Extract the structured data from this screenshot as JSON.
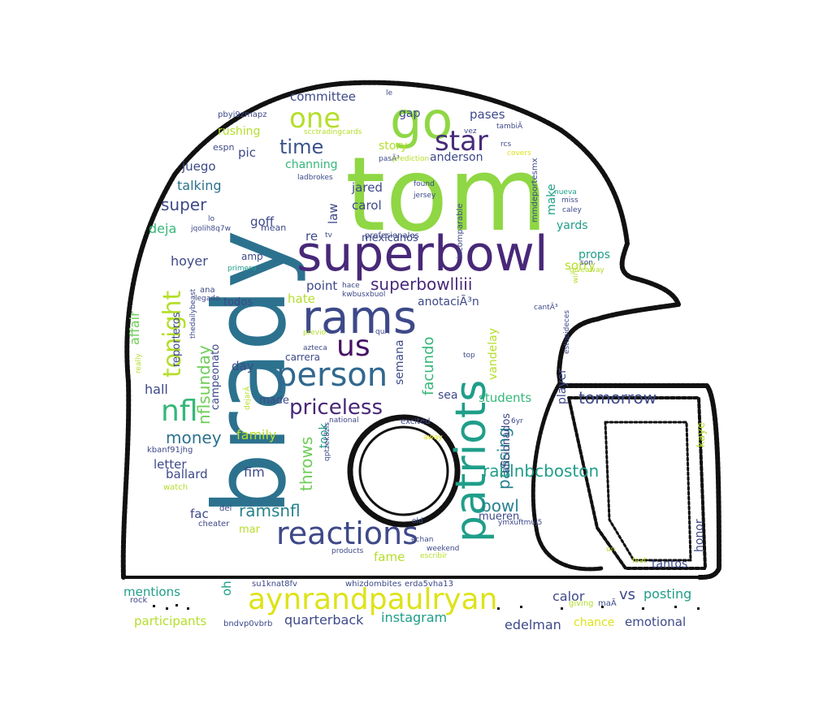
{
  "palette": {
    "dark_purple": "#471164",
    "purple": "#482878",
    "indigo": "#3e4989",
    "blue": "#31688e",
    "teal_blue": "#26828e",
    "teal": "#1f9e89",
    "green": "#35b779",
    "light_green": "#6ece58",
    "lime": "#8fd744",
    "yellow_green": "#b5de2b",
    "yellow": "#dde318"
  },
  "words": [
    {
      "text": "tom",
      "color": "#8fd744"
    },
    {
      "text": "brady",
      "color": "#2c728e"
    },
    {
      "text": "superbowl",
      "color": "#482878"
    },
    {
      "text": "rams",
      "color": "#3e4989"
    },
    {
      "text": "patriots",
      "color": "#1f9e89"
    },
    {
      "text": "go",
      "color": "#8fd744"
    },
    {
      "text": "person",
      "color": "#31688e"
    },
    {
      "text": "reactions",
      "color": "#3e4989"
    },
    {
      "text": "aynrandpaulryan",
      "color": "#dde318"
    },
    {
      "text": "nfl",
      "color": "#35b779"
    },
    {
      "text": "us",
      "color": "#471164"
    },
    {
      "text": "tonight",
      "color": "#b5de2b"
    },
    {
      "text": "star",
      "color": "#472c7a"
    },
    {
      "text": "one",
      "color": "#b5de2b"
    },
    {
      "text": "priceless",
      "color": "#482878"
    },
    {
      "text": "time",
      "color": "#3b528b"
    },
    {
      "text": "superbowlliii",
      "color": "#482878"
    },
    {
      "text": "nflsunday",
      "color": "#6ece58"
    },
    {
      "text": "facundo",
      "color": "#35b779"
    },
    {
      "text": "throws",
      "color": "#6ece58"
    },
    {
      "text": "passing",
      "color": "#26828e"
    },
    {
      "text": "raulnbcboston",
      "color": "#1f9e89"
    },
    {
      "text": "tomorrow",
      "color": "#3e4989"
    },
    {
      "text": "money",
      "color": "#2c728e"
    },
    {
      "text": "super",
      "color": "#3e4989"
    },
    {
      "text": "ramsnfl",
      "color": "#26828e"
    },
    {
      "text": "bowl",
      "color": "#26828e"
    },
    {
      "text": "vs",
      "color": "#3e4989"
    },
    {
      "text": "affair",
      "color": "#6ece58"
    },
    {
      "text": "law",
      "color": "#3e4989"
    },
    {
      "text": "committee",
      "color": "#3e4989"
    },
    {
      "text": "pases",
      "color": "#3e4989"
    },
    {
      "text": "gap",
      "color": "#3e4989"
    },
    {
      "text": "rushing",
      "color": "#b5de2b"
    },
    {
      "text": "pic",
      "color": "#3e4989"
    },
    {
      "text": "story",
      "color": "#b5de2b"
    },
    {
      "text": "anderson",
      "color": "#3e4989"
    },
    {
      "text": "espn",
      "color": "#3e4989"
    },
    {
      "text": "channing",
      "color": "#35b779"
    },
    {
      "text": "juego",
      "color": "#3e4989"
    },
    {
      "text": "talking",
      "color": "#2c728e"
    },
    {
      "text": "jared",
      "color": "#3e4989"
    },
    {
      "text": "carol",
      "color": "#3e4989"
    },
    {
      "text": "make",
      "color": "#1f9e89"
    },
    {
      "text": "deja",
      "color": "#35b779"
    },
    {
      "text": "goff",
      "color": "#3e4989"
    },
    {
      "text": "mean",
      "color": "#3e4989"
    },
    {
      "text": "re",
      "color": "#3e4989"
    },
    {
      "text": "yards",
      "color": "#1f9e89"
    },
    {
      "text": "mexicanos",
      "color": "#3e4989"
    },
    {
      "text": "sorry",
      "color": "#b5de2b"
    },
    {
      "text": "props",
      "color": "#1f9e89"
    },
    {
      "text": "hoyer",
      "color": "#3e4989"
    },
    {
      "text": "amp",
      "color": "#3e4989"
    },
    {
      "text": "point",
      "color": "#3e4989"
    },
    {
      "text": "hate",
      "color": "#b5de2b"
    },
    {
      "text": "todos",
      "color": "#3e4989"
    },
    {
      "text": "reporteros",
      "color": "#3e4989"
    },
    {
      "text": "anotaciÃ³n",
      "color": "#3e4989"
    },
    {
      "text": "vandelay",
      "color": "#b5de2b"
    },
    {
      "text": "semana",
      "color": "#3e4989"
    },
    {
      "text": "campeonato",
      "color": "#3e4989"
    },
    {
      "text": "hall",
      "color": "#3e4989"
    },
    {
      "text": "day",
      "color": "#3e4989"
    },
    {
      "text": "carrera",
      "color": "#3e4989"
    },
    {
      "text": "made",
      "color": "#3e4989"
    },
    {
      "text": "sea",
      "color": "#3e4989"
    },
    {
      "text": "students",
      "color": "#35b779"
    },
    {
      "text": "player",
      "color": "#3e4989"
    },
    {
      "text": "family",
      "color": "#b5de2b"
    },
    {
      "text": "took",
      "color": "#1f9e89"
    },
    {
      "text": "letter",
      "color": "#3e4989"
    },
    {
      "text": "ballard",
      "color": "#3e4989"
    },
    {
      "text": "fim",
      "color": "#3e4989"
    },
    {
      "text": "fac",
      "color": "#3e4989"
    },
    {
      "text": "mar",
      "color": "#b5de2b"
    },
    {
      "text": "fame",
      "color": "#b5de2b"
    },
    {
      "text": "mueren",
      "color": "#3e4989"
    },
    {
      "text": "honor",
      "color": "#3e4989"
    },
    {
      "text": "kaye",
      "color": "#b5de2b"
    },
    {
      "text": "tantos",
      "color": "#3e4989"
    },
    {
      "text": "aficionados",
      "color": "#3e4989"
    },
    {
      "text": "mentions",
      "color": "#1f9e89"
    },
    {
      "text": "oh",
      "color": "#1f9e89"
    },
    {
      "text": "quarterback",
      "color": "#3e4989"
    },
    {
      "text": "instagram",
      "color": "#1f9e89"
    },
    {
      "text": "calor",
      "color": "#3e4989"
    },
    {
      "text": "posting",
      "color": "#1f9e89"
    },
    {
      "text": "edelman",
      "color": "#3e4989"
    },
    {
      "text": "chance",
      "color": "#dde318"
    },
    {
      "text": "emotional",
      "color": "#3e4989"
    },
    {
      "text": "participants",
      "color": "#b5de2b"
    },
    {
      "text": "rock",
      "color": "#3e4989"
    },
    {
      "text": "giving",
      "color": "#b5de2b"
    },
    {
      "text": "maÃ",
      "color": "#3e4989"
    },
    {
      "text": "su1knat8fv",
      "color": "#3e4989"
    },
    {
      "text": "whizdombites",
      "color": "#3e4989"
    },
    {
      "text": "erda5vha13",
      "color": "#3e4989"
    },
    {
      "text": "bndvp0vbrb",
      "color": "#3e4989"
    },
    {
      "text": "pbyi9zmapz",
      "color": "#3e4989"
    },
    {
      "text": "scctradingcards",
      "color": "#b5de2b"
    },
    {
      "text": "le",
      "color": "#3e4989"
    },
    {
      "text": "vez",
      "color": "#3e4989"
    },
    {
      "text": "tambiÃ",
      "color": "#3e4989"
    },
    {
      "text": "rcs",
      "color": "#3e4989"
    },
    {
      "text": "covers",
      "color": "#dde318"
    },
    {
      "text": "pasÃ³",
      "color": "#3e4989"
    },
    {
      "text": "prediction",
      "color": "#b5de2b"
    },
    {
      "text": "mmdeportesmx",
      "color": "#3e4989"
    },
    {
      "text": "ladbrokes",
      "color": "#3e4989"
    },
    {
      "text": "incomparable",
      "color": "#3e4989"
    },
    {
      "text": "found",
      "color": "#3e4989"
    },
    {
      "text": "jersey",
      "color": "#3e4989"
    },
    {
      "text": "nueva",
      "color": "#1f9e89"
    },
    {
      "text": "miss",
      "color": "#3e4989"
    },
    {
      "text": "caley",
      "color": "#3e4989"
    },
    {
      "text": "lo",
      "color": "#3e4989"
    },
    {
      "text": "jqolih8q7w",
      "color": "#3e4989"
    },
    {
      "text": "tv",
      "color": "#3e4989"
    },
    {
      "text": "profesionales",
      "color": "#3e4989"
    },
    {
      "text": "son",
      "color": "#3e4989"
    },
    {
      "text": "giveaway",
      "color": "#b5de2b"
    },
    {
      "text": "ana",
      "color": "#3e4989"
    },
    {
      "text": "legado",
      "color": "#3e4989"
    },
    {
      "text": "primera",
      "color": "#1f9e89"
    },
    {
      "text": "thedailybeast",
      "color": "#3e4989"
    },
    {
      "text": "kwbusxbuol",
      "color": "#3e4989"
    },
    {
      "text": "hace",
      "color": "#3e4989"
    },
    {
      "text": "cantÃ³",
      "color": "#3e4989"
    },
    {
      "text": "estupideces",
      "color": "#3e4989"
    },
    {
      "text": "previo",
      "color": "#b5de2b"
    },
    {
      "text": "quÃ",
      "color": "#3e4989"
    },
    {
      "text": "azteca",
      "color": "#3e4989"
    },
    {
      "text": "top",
      "color": "#3e4989"
    },
    {
      "text": "really",
      "color": "#b5de2b"
    },
    {
      "text": "dejarÃ",
      "color": "#b5de2b"
    },
    {
      "text": "national",
      "color": "#3e4989"
    },
    {
      "text": "qptzek8zls",
      "color": "#3e4989"
    },
    {
      "text": "excited",
      "color": "#3e4989"
    },
    {
      "text": "6yr",
      "color": "#3e4989"
    },
    {
      "text": "away",
      "color": "#dde318"
    },
    {
      "text": "kbanf91jhg",
      "color": "#3e4989"
    },
    {
      "text": "watch",
      "color": "#b5de2b"
    },
    {
      "text": "del",
      "color": "#3e4989"
    },
    {
      "text": "cheater",
      "color": "#3e4989"
    },
    {
      "text": "old",
      "color": "#3e4989"
    },
    {
      "text": "ymxuftmuj5",
      "color": "#3e4989"
    },
    {
      "text": "echan",
      "color": "#3e4989"
    },
    {
      "text": "escribir",
      "color": "#b5de2b"
    },
    {
      "text": "weekend",
      "color": "#3e4989"
    },
    {
      "text": "products",
      "color": "#3e4989"
    },
    {
      "text": "un",
      "color": "#b5de2b"
    },
    {
      "text": "feat",
      "color": "#b5de2b"
    },
    {
      "text": "win",
      "color": "#b5de2b"
    }
  ]
}
